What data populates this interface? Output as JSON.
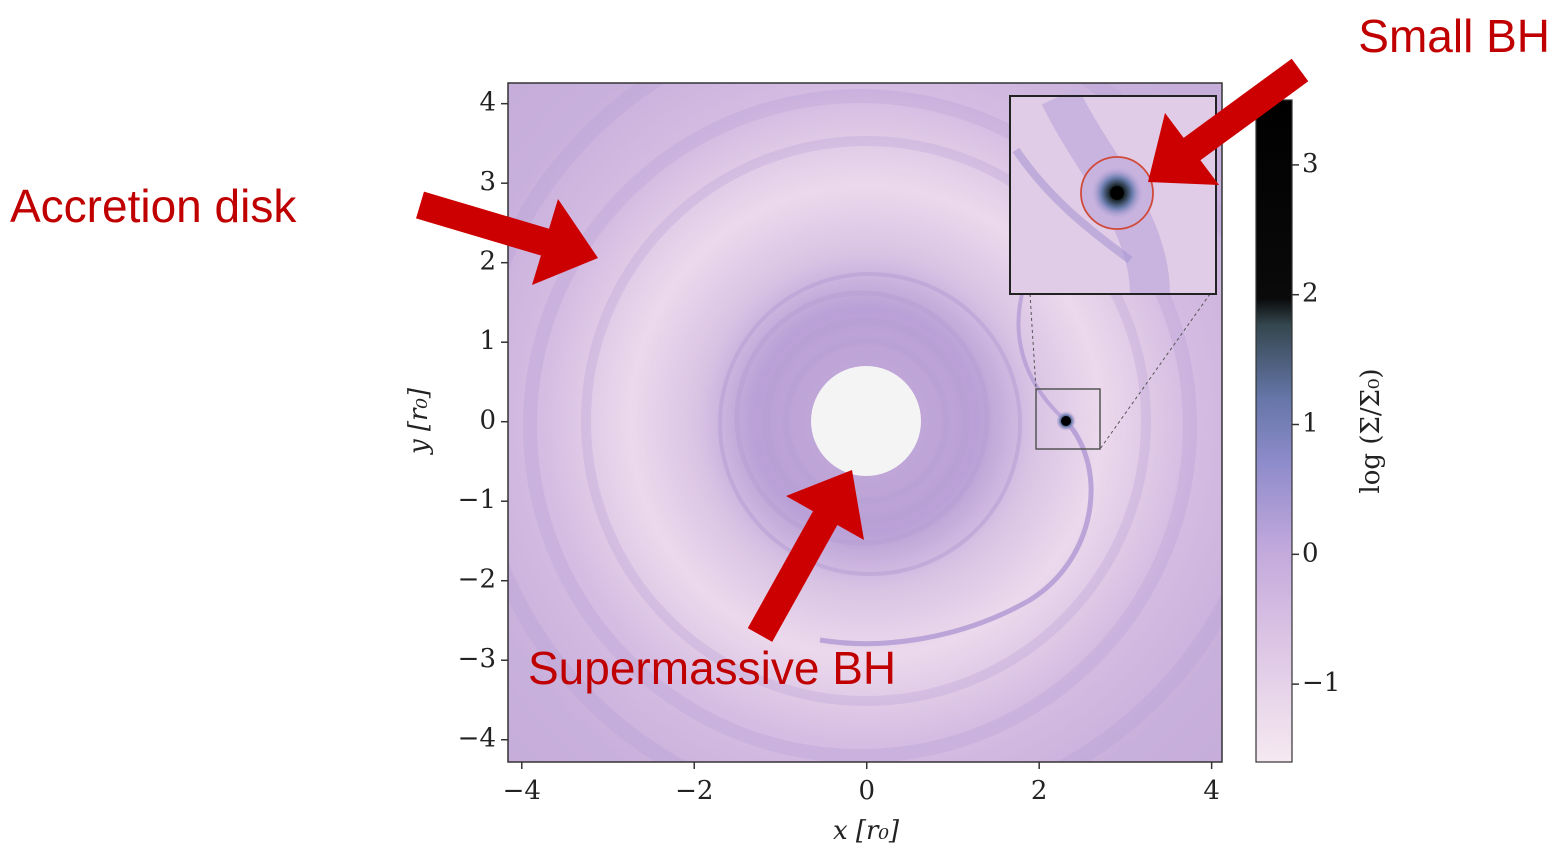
{
  "chart_data": {
    "type": "heatmap",
    "xlabel": "x [r₀]",
    "ylabel": "y [r₀]",
    "xlim": [
      -4.16,
      4.12
    ],
    "ylim": [
      -4.28,
      4.26
    ],
    "xticks": [
      {
        "value": -4,
        "label": "−4"
      },
      {
        "value": -2,
        "label": "−2"
      },
      0,
      2,
      4
    ],
    "yticks": [
      {
        "value": -4,
        "label": "−4"
      },
      {
        "value": -3,
        "label": "−3"
      },
      {
        "value": -2,
        "label": "−2"
      },
      {
        "value": -1,
        "label": "−1"
      },
      0,
      1,
      2,
      3,
      4
    ],
    "colorbar": {
      "label": "log (Σ/Σ₀)",
      "lim": [
        -1.6,
        3.5
      ],
      "ticks": [
        {
          "value": -1,
          "label": "−1"
        },
        0,
        1,
        2,
        3
      ]
    },
    "annotations": [
      "Accretion disk",
      "Supermassive BH",
      "Small BH"
    ]
  }
}
